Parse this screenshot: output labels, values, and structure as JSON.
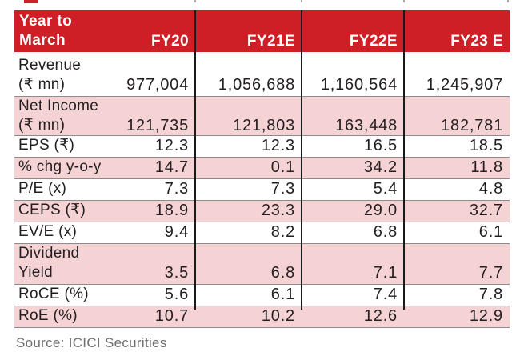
{
  "colors": {
    "header-red": "#ce1f26",
    "row-pink": "#f5d3d5",
    "line-gray": "#8a8c8e",
    "col-line": "#1a1a1a",
    "text-dark": "#231f20",
    "source-gray": "#6e7072"
  },
  "table": {
    "header": {
      "label_line1": "Year to",
      "label_line2": "March",
      "columns": [
        "FY20",
        "FY21E",
        "FY22E",
        "FY23 E"
      ]
    },
    "rows": [
      {
        "label": "Revenue",
        "label2": "(₹ mn)",
        "values": [
          "977,004",
          "1,056,688",
          "1,160,564",
          "1,245,907"
        ]
      },
      {
        "label": "Net Income",
        "label2": "(₹ mn)",
        "values": [
          "121,735",
          "121,803",
          "163,448",
          "182,781"
        ]
      },
      {
        "label": "EPS (₹)",
        "label2": "",
        "values": [
          "12.3",
          "12.3",
          "16.5",
          "18.5"
        ]
      },
      {
        "label": "% chg y-o-y",
        "label2": "",
        "values": [
          "14.7",
          "0.1",
          "34.2",
          "11.8"
        ]
      },
      {
        "label": "P/E (x)",
        "label2": "",
        "values": [
          "7.3",
          "7.3",
          "5.4",
          "4.8"
        ]
      },
      {
        "label": "CEPS (₹)",
        "label2": "",
        "values": [
          "18.9",
          "23.3",
          "29.0",
          "32.7"
        ]
      },
      {
        "label": "EV/E (x)",
        "label2": "",
        "values": [
          "9.4",
          "8.2",
          "6.8",
          "6.1"
        ]
      },
      {
        "label": "Dividend",
        "label2": "Yield",
        "values": [
          "3.5",
          "6.8",
          "7.1",
          "7.7"
        ]
      },
      {
        "label": "RoCE (%)",
        "label2": "",
        "values": [
          "5.6",
          "6.1",
          "7.4",
          "7.8"
        ]
      },
      {
        "label": "RoE (%)",
        "label2": "",
        "values": [
          "10.7",
          "10.2",
          "12.6",
          "12.9"
        ]
      }
    ]
  },
  "source": "Source: ICICI Securities"
}
